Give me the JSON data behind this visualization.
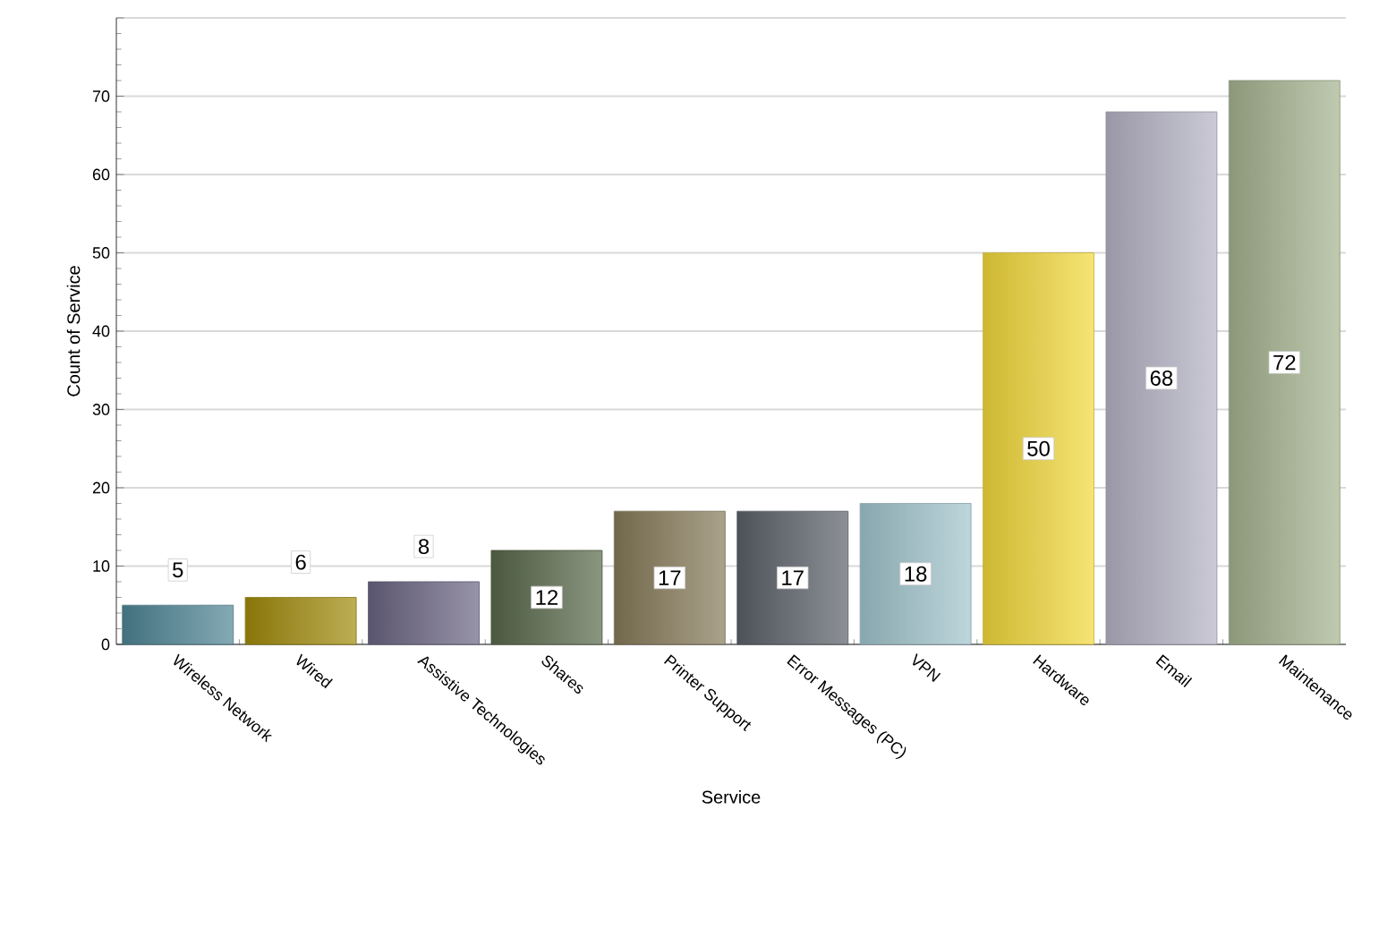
{
  "chart_data": {
    "type": "bar",
    "xlabel": "Service",
    "ylabel": "Count of Service",
    "categories": [
      "Wireless Network",
      "Wired",
      "Assistive Technologies",
      "Shares",
      "Printer Support",
      "Error Messages (PC)",
      "VPN",
      "Hardware",
      "Email",
      "Maintenance"
    ],
    "values": [
      5,
      6,
      8,
      12,
      17,
      17,
      18,
      50,
      68,
      72
    ],
    "colors": [
      "#4e8494",
      "#a08a0a",
      "#6a6482",
      "#58684a",
      "#857958",
      "#5a6068",
      "#a0c4cc",
      "#f2d83a",
      "#b4b2c4",
      "#a4b28e"
    ],
    "ylim": [
      0,
      80
    ],
    "yticks": [
      0,
      10,
      20,
      30,
      40,
      50,
      60,
      70,
      {
        "value": 80,
        "label": null
      }
    ],
    "grid": "y",
    "data_labels": true
  }
}
